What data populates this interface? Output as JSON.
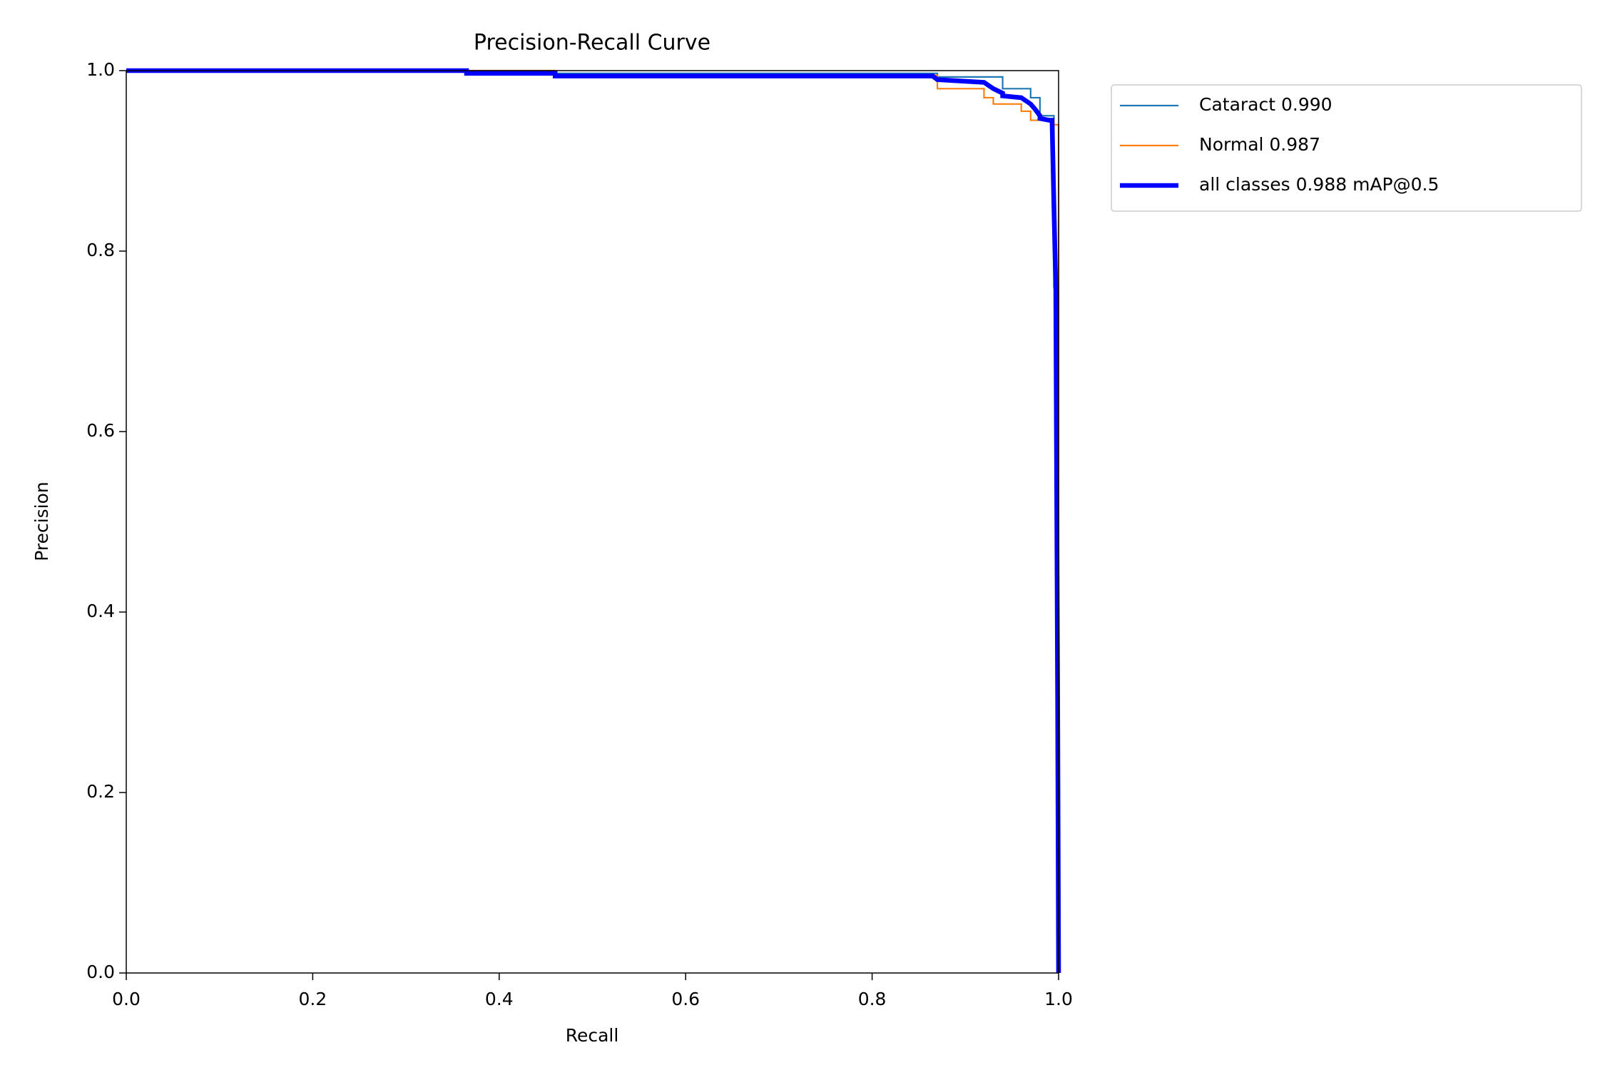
{
  "chart_data": {
    "type": "line",
    "title": "Precision-Recall Curve",
    "x_label": "Recall",
    "y_label": "Precision",
    "xlim": [
      0,
      1
    ],
    "ylim": [
      0,
      1
    ],
    "xticks": [
      {
        "value": 0,
        "label": "0.0"
      },
      0.2,
      0.4,
      0.6,
      0.8,
      {
        "value": 1,
        "label": "1.0"
      }
    ],
    "yticks": [
      {
        "value": 0,
        "label": "0.0"
      },
      0.2,
      0.4,
      0.6,
      0.8,
      {
        "value": 1,
        "label": "1.0"
      }
    ],
    "grid": false,
    "legend": "outside-upper-right",
    "series": [
      {
        "name": "Cataract 0.990",
        "color": "#1f77b4",
        "width": 1,
        "x": [
          0,
          0.365,
          0.365,
          0.87,
          0.87,
          0.94,
          0.94,
          0.97,
          0.97,
          0.98,
          0.98,
          0.995,
          0.995,
          0.998,
          1.0
        ],
        "values": [
          1,
          1,
          0.997,
          0.997,
          0.993,
          0.993,
          0.98,
          0.98,
          0.97,
          0.97,
          0.95,
          0.95,
          0.76,
          0.76,
          0
        ]
      },
      {
        "name": "Normal 0.987",
        "color": "#ff7f0e",
        "width": 1,
        "x": [
          0,
          0.46,
          0.46,
          0.87,
          0.87,
          0.92,
          0.92,
          0.93,
          0.93,
          0.96,
          0.96,
          0.97,
          0.97,
          0.995,
          0.995,
          1.0,
          1.0
        ],
        "values": [
          1,
          1,
          0.995,
          0.995,
          0.98,
          0.98,
          0.97,
          0.97,
          0.963,
          0.963,
          0.955,
          0.955,
          0.945,
          0.945,
          0.94,
          0.94,
          0
        ]
      },
      {
        "name": "all classes 0.988 mAP@0.5",
        "color": "#0000ff",
        "width": 3,
        "x": [
          0,
          0.365,
          0.365,
          0.46,
          0.46,
          0.865,
          0.87,
          0.92,
          0.93,
          0.94,
          0.94,
          0.96,
          0.97,
          0.975,
          0.98,
          0.98,
          0.99,
          0.993,
          0.995,
          0.997,
          0.999,
          1.0
        ],
        "values": [
          1,
          1,
          0.997,
          0.997,
          0.994,
          0.994,
          0.99,
          0.987,
          0.98,
          0.975,
          0.972,
          0.97,
          0.963,
          0.957,
          0.95,
          0.947,
          0.945,
          0.945,
          0.85,
          0.76,
          0.3,
          0
        ]
      }
    ]
  }
}
